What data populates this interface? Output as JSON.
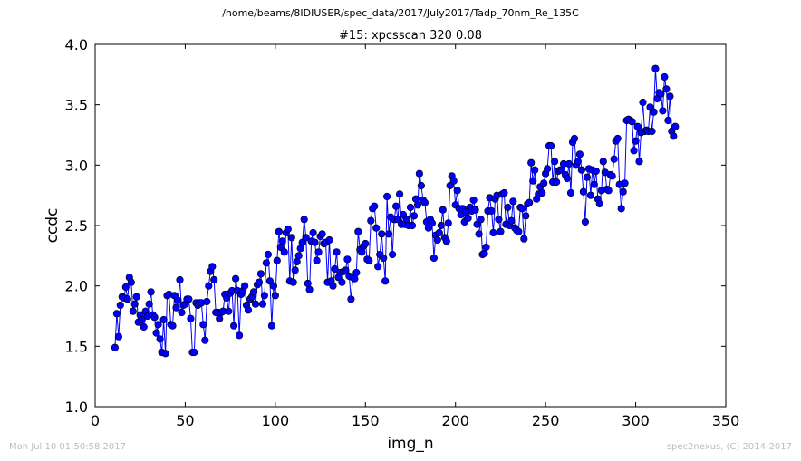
{
  "header": {
    "suptitle": "/home/beams/8IDIUSER/spec_data/2017/July2017/Tadp_70nm_Re_135C"
  },
  "footer": {
    "timestamp": "Mon Jul 10 01:50:58 2017",
    "credit": "spec2nexus, (C) 2014-2017"
  },
  "colors": {
    "series": "#0000ff",
    "marker": "#0000ff",
    "footer_text": "#bdbdbd"
  },
  "chart_data": {
    "type": "line",
    "title": "#15: xpcsscan 320 0.08",
    "xlabel": "img_n",
    "ylabel": "ccdc",
    "xlim": [
      0,
      350
    ],
    "ylim": [
      1.0,
      4.0
    ],
    "xticks": [
      0,
      50,
      100,
      150,
      200,
      250,
      300,
      350
    ],
    "xtick_labels": [
      "0",
      "50",
      "100",
      "150",
      "200",
      "250",
      "300",
      "350"
    ],
    "yticks": [
      1.0,
      1.5,
      2.0,
      2.5,
      3.0,
      3.5,
      4.0
    ],
    "ytick_labels": [
      "1.0",
      "1.5",
      "2.0",
      "2.5",
      "3.0",
      "3.5",
      "4.0"
    ],
    "grid": false,
    "marker": "circle",
    "series": [
      {
        "x_start": 11,
        "x_step": 1,
        "values": [
          1.49,
          1.77,
          1.58,
          1.84,
          1.91,
          1.9,
          1.99,
          1.89,
          2.07,
          2.03,
          1.79,
          1.85,
          1.91,
          1.7,
          1.76,
          1.72,
          1.66,
          1.79,
          1.75,
          1.85,
          1.95,
          1.76,
          1.74,
          1.61,
          1.68,
          1.56,
          1.45,
          1.72,
          1.44,
          1.92,
          1.93,
          1.68,
          1.67,
          1.92,
          1.82,
          1.88,
          2.05,
          1.78,
          1.84,
          1.85,
          1.89,
          1.89,
          1.73,
          1.45,
          1.45,
          1.86,
          1.84,
          1.86,
          1.86,
          1.68,
          1.55,
          1.87,
          2.0,
          2.12,
          2.16,
          2.05,
          1.78,
          1.78,
          1.73,
          1.78,
          1.79,
          1.93,
          1.9,
          1.79,
          1.94,
          1.96,
          1.67,
          2.06,
          1.96,
          1.59,
          1.93,
          1.96,
          2.0,
          1.84,
          1.8,
          1.89,
          1.91,
          1.95,
          1.85,
          2.01,
          2.03,
          2.1,
          1.85,
          1.92,
          2.19,
          2.26,
          2.04,
          1.67,
          2.0,
          1.92,
          2.21,
          2.45,
          2.32,
          2.37,
          2.28,
          2.44,
          2.47,
          2.04,
          2.4,
          2.03,
          2.13,
          2.2,
          2.25,
          2.31,
          2.36,
          2.55,
          2.4,
          2.02,
          1.97,
          2.37,
          2.44,
          2.36,
          2.21,
          2.28,
          2.41,
          2.43,
          2.35,
          2.36,
          2.03,
          2.38,
          2.04,
          2.0,
          2.14,
          2.28,
          2.07,
          2.11,
          2.03,
          2.12,
          2.13,
          2.22,
          2.08,
          1.89,
          2.07,
          2.06,
          2.11,
          2.45,
          2.3,
          2.28,
          2.33,
          2.35,
          2.22,
          2.21,
          2.54,
          2.64,
          2.66,
          2.48,
          2.16,
          2.26,
          2.43,
          2.23,
          2.04,
          2.74,
          2.43,
          2.57,
          2.26,
          2.55,
          2.66,
          2.55,
          2.76,
          2.51,
          2.59,
          2.51,
          2.55,
          2.5,
          2.65,
          2.5,
          2.58,
          2.72,
          2.67,
          2.93,
          2.83,
          2.71,
          2.69,
          2.53,
          2.48,
          2.55,
          2.52,
          2.23,
          2.42,
          2.38,
          2.44,
          2.5,
          2.63,
          2.4,
          2.37,
          2.52,
          2.83,
          2.91,
          2.87,
          2.67,
          2.79,
          2.64,
          2.59,
          2.64,
          2.53,
          2.61,
          2.56,
          2.65,
          2.62,
          2.71,
          2.63,
          2.51,
          2.43,
          2.55,
          2.26,
          2.27,
          2.32,
          2.62,
          2.73,
          2.62,
          2.44,
          2.72,
          2.75,
          2.55,
          2.45,
          2.76,
          2.77,
          2.51,
          2.65,
          2.5,
          2.54,
          2.7,
          2.48,
          2.46,
          2.45,
          2.65,
          2.64,
          2.39,
          2.58,
          2.68,
          2.69,
          3.02,
          2.87,
          2.96,
          2.72,
          2.76,
          2.82,
          2.77,
          2.85,
          2.93,
          2.97,
          3.16,
          3.16,
          2.86,
          3.03,
          2.86,
          2.95,
          2.96,
          2.96,
          3.01,
          2.92,
          2.89,
          3.01,
          2.77,
          3.19,
          3.22,
          3.0,
          3.03,
          3.09,
          2.96,
          2.78,
          2.53,
          2.9,
          2.97,
          2.75,
          2.96,
          2.84,
          2.95,
          2.72,
          2.68,
          2.79,
          3.03,
          2.94,
          2.8,
          2.79,
          2.92,
          2.91,
          3.05,
          3.2,
          3.22,
          2.84,
          2.64,
          2.78,
          2.85,
          3.37,
          3.38,
          3.37,
          3.36,
          3.12,
          3.2,
          3.32,
          3.03,
          3.27,
          3.52,
          3.28,
          3.29,
          3.28,
          3.48,
          3.28,
          3.44,
          3.8,
          3.55,
          3.6,
          3.59,
          3.45,
          3.73,
          3.63,
          3.37,
          3.57,
          3.28,
          3.24,
          3.32
        ]
      }
    ]
  }
}
